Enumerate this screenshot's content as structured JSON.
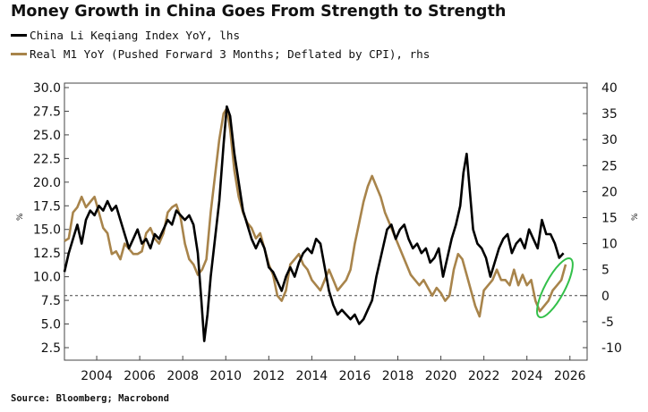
{
  "title": "Money Growth in China Goes From Strength to Strength",
  "legend": [
    {
      "label": "China Li Keqiang Index YoY, lhs",
      "color": "#000000"
    },
    {
      "label": "Real M1 YoY (Pushed Forward 3 Months; Deflated by CPI), rhs",
      "color": "#a8844b"
    }
  ],
  "source": "Source: Bloomberg; Macrobond",
  "chart_data": {
    "type": "line",
    "title": "Money Growth in China Goes From Strength to Strength",
    "left_axis": {
      "ylim": [
        2.5,
        30.0
      ],
      "ticks": [
        "2.5",
        "5.0",
        "7.5",
        "10.0",
        "12.5",
        "15.0",
        "17.5",
        "20.0",
        "22.5",
        "25.0",
        "27.5",
        "30.0"
      ],
      "unit": "%"
    },
    "right_axis": {
      "ylim": [
        -10,
        40
      ],
      "ticks": [
        "-10",
        "-5",
        "0",
        "5",
        "10",
        "15",
        "20",
        "25",
        "30",
        "35",
        "40"
      ],
      "unit": "%"
    },
    "x_axis": {
      "xlim": [
        2002.5,
        2026.8
      ],
      "ticks": [
        "2004",
        "2006",
        "2008",
        "2010",
        "2012",
        "2014",
        "2016",
        "2018",
        "2020",
        "2022",
        "2024",
        "2026"
      ]
    },
    "reference_line": {
      "axis": "right",
      "value": 0,
      "style": "dashed"
    },
    "annotation": {
      "shape": "ellipse",
      "color": "#33c04a",
      "center_x": 2025.3,
      "center_y_rhs": 1.5
    },
    "series": [
      {
        "name": "China Li Keqiang Index YoY, lhs",
        "axis": "left",
        "color": "#000000",
        "points": [
          [
            2002.5,
            10.5
          ],
          [
            2002.7,
            12.5
          ],
          [
            2002.9,
            14
          ],
          [
            2003.1,
            15.5
          ],
          [
            2003.3,
            13.5
          ],
          [
            2003.5,
            16
          ],
          [
            2003.7,
            17
          ],
          [
            2003.9,
            16.5
          ],
          [
            2004.1,
            17.5
          ],
          [
            2004.3,
            17
          ],
          [
            2004.5,
            18
          ],
          [
            2004.7,
            17
          ],
          [
            2004.9,
            17.5
          ],
          [
            2005.1,
            16
          ],
          [
            2005.3,
            14.5
          ],
          [
            2005.5,
            13
          ],
          [
            2005.7,
            14
          ],
          [
            2005.9,
            15
          ],
          [
            2006.1,
            13.5
          ],
          [
            2006.3,
            14
          ],
          [
            2006.5,
            13
          ],
          [
            2006.7,
            14.5
          ],
          [
            2006.9,
            14
          ],
          [
            2007.1,
            15
          ],
          [
            2007.3,
            16
          ],
          [
            2007.5,
            15.5
          ],
          [
            2007.7,
            17
          ],
          [
            2007.9,
            16.5
          ],
          [
            2008.1,
            16
          ],
          [
            2008.3,
            16.5
          ],
          [
            2008.5,
            15.5
          ],
          [
            2008.7,
            12.5
          ],
          [
            2008.85,
            8
          ],
          [
            2009.0,
            3.2
          ],
          [
            2009.15,
            6
          ],
          [
            2009.3,
            10
          ],
          [
            2009.5,
            14
          ],
          [
            2009.7,
            18
          ],
          [
            2009.9,
            24
          ],
          [
            2010.05,
            28
          ],
          [
            2010.2,
            27
          ],
          [
            2010.4,
            23
          ],
          [
            2010.6,
            20
          ],
          [
            2010.8,
            17
          ],
          [
            2011.0,
            15.5
          ],
          [
            2011.2,
            14
          ],
          [
            2011.4,
            13
          ],
          [
            2011.6,
            14
          ],
          [
            2011.8,
            13
          ],
          [
            2012.0,
            11
          ],
          [
            2012.2,
            10.5
          ],
          [
            2012.4,
            9.5
          ],
          [
            2012.6,
            8.5
          ],
          [
            2012.8,
            10
          ],
          [
            2013.0,
            11
          ],
          [
            2013.2,
            10
          ],
          [
            2013.4,
            11.5
          ],
          [
            2013.6,
            12.5
          ],
          [
            2013.8,
            13
          ],
          [
            2014.0,
            12.5
          ],
          [
            2014.2,
            14
          ],
          [
            2014.4,
            13.5
          ],
          [
            2014.6,
            11
          ],
          [
            2014.8,
            8.5
          ],
          [
            2015.0,
            7
          ],
          [
            2015.2,
            6
          ],
          [
            2015.4,
            6.5
          ],
          [
            2015.6,
            6
          ],
          [
            2015.8,
            5.5
          ],
          [
            2016.0,
            6
          ],
          [
            2016.2,
            5
          ],
          [
            2016.4,
            5.5
          ],
          [
            2016.6,
            6.5
          ],
          [
            2016.8,
            7.5
          ],
          [
            2017.0,
            10
          ],
          [
            2017.2,
            12
          ],
          [
            2017.5,
            15
          ],
          [
            2017.7,
            15.5
          ],
          [
            2017.9,
            14
          ],
          [
            2018.1,
            15
          ],
          [
            2018.3,
            15.5
          ],
          [
            2018.5,
            14
          ],
          [
            2018.7,
            13
          ],
          [
            2018.9,
            13.5
          ],
          [
            2019.1,
            12.5
          ],
          [
            2019.3,
            13
          ],
          [
            2019.5,
            11.5
          ],
          [
            2019.7,
            12
          ],
          [
            2019.9,
            13
          ],
          [
            2020.1,
            10
          ],
          [
            2020.3,
            12
          ],
          [
            2020.5,
            14
          ],
          [
            2020.7,
            15.5
          ],
          [
            2020.9,
            17.5
          ],
          [
            2021.05,
            21
          ],
          [
            2021.2,
            23
          ],
          [
            2021.35,
            19
          ],
          [
            2021.5,
            15
          ],
          [
            2021.7,
            13.5
          ],
          [
            2021.9,
            13
          ],
          [
            2022.1,
            12
          ],
          [
            2022.3,
            10
          ],
          [
            2022.5,
            11.5
          ],
          [
            2022.7,
            13
          ],
          [
            2022.9,
            14
          ],
          [
            2023.1,
            14.5
          ],
          [
            2023.3,
            12.5
          ],
          [
            2023.5,
            13.5
          ],
          [
            2023.7,
            14
          ],
          [
            2023.9,
            13
          ],
          [
            2024.1,
            15
          ],
          [
            2024.3,
            14
          ],
          [
            2024.5,
            13
          ],
          [
            2024.7,
            16
          ],
          [
            2024.9,
            14.5
          ],
          [
            2025.1,
            14.5
          ],
          [
            2025.3,
            13.5
          ],
          [
            2025.5,
            12
          ],
          [
            2025.7,
            12.5
          ]
        ]
      },
      {
        "name": "Real M1 YoY (Pushed Forward 3 Months; Deflated by CPI), rhs",
        "axis": "right",
        "color": "#a8844b",
        "points": [
          [
            2002.5,
            10.5
          ],
          [
            2002.7,
            11
          ],
          [
            2002.9,
            16
          ],
          [
            2003.1,
            17
          ],
          [
            2003.3,
            19
          ],
          [
            2003.5,
            17
          ],
          [
            2003.7,
            18
          ],
          [
            2003.9,
            19
          ],
          [
            2004.1,
            16
          ],
          [
            2004.3,
            13
          ],
          [
            2004.5,
            12
          ],
          [
            2004.7,
            8
          ],
          [
            2004.9,
            8.5
          ],
          [
            2005.1,
            7
          ],
          [
            2005.3,
            10
          ],
          [
            2005.5,
            9
          ],
          [
            2005.7,
            8
          ],
          [
            2005.9,
            8
          ],
          [
            2006.1,
            8.5
          ],
          [
            2006.3,
            12
          ],
          [
            2006.5,
            13
          ],
          [
            2006.7,
            11
          ],
          [
            2006.9,
            10
          ],
          [
            2007.1,
            12
          ],
          [
            2007.3,
            16
          ],
          [
            2007.5,
            17
          ],
          [
            2007.7,
            17.5
          ],
          [
            2007.9,
            15
          ],
          [
            2008.1,
            10
          ],
          [
            2008.3,
            7
          ],
          [
            2008.5,
            6
          ],
          [
            2008.7,
            4
          ],
          [
            2008.9,
            5
          ],
          [
            2009.1,
            7
          ],
          [
            2009.3,
            16
          ],
          [
            2009.5,
            23
          ],
          [
            2009.7,
            30
          ],
          [
            2009.9,
            35
          ],
          [
            2010.05,
            36
          ],
          [
            2010.2,
            32
          ],
          [
            2010.4,
            24
          ],
          [
            2010.6,
            19
          ],
          [
            2010.8,
            16
          ],
          [
            2011.0,
            14
          ],
          [
            2011.2,
            13
          ],
          [
            2011.4,
            11
          ],
          [
            2011.6,
            12
          ],
          [
            2011.8,
            9
          ],
          [
            2012.0,
            6
          ],
          [
            2012.2,
            4
          ],
          [
            2012.4,
            0
          ],
          [
            2012.6,
            -1
          ],
          [
            2012.8,
            1
          ],
          [
            2013.0,
            6
          ],
          [
            2013.2,
            7
          ],
          [
            2013.4,
            8
          ],
          [
            2013.6,
            6
          ],
          [
            2013.8,
            5
          ],
          [
            2014.0,
            3
          ],
          [
            2014.2,
            2
          ],
          [
            2014.4,
            1
          ],
          [
            2014.6,
            3
          ],
          [
            2014.8,
            5
          ],
          [
            2015.0,
            3
          ],
          [
            2015.2,
            1
          ],
          [
            2015.4,
            2
          ],
          [
            2015.6,
            3
          ],
          [
            2015.8,
            5
          ],
          [
            2016.0,
            10
          ],
          [
            2016.2,
            14
          ],
          [
            2016.4,
            18
          ],
          [
            2016.6,
            21
          ],
          [
            2016.8,
            23
          ],
          [
            2017.0,
            21
          ],
          [
            2017.2,
            19
          ],
          [
            2017.4,
            16
          ],
          [
            2017.6,
            14
          ],
          [
            2017.8,
            12
          ],
          [
            2018.0,
            10
          ],
          [
            2018.2,
            8
          ],
          [
            2018.4,
            6
          ],
          [
            2018.6,
            4
          ],
          [
            2018.8,
            3
          ],
          [
            2019.0,
            2
          ],
          [
            2019.2,
            3
          ],
          [
            2019.4,
            1.5
          ],
          [
            2019.6,
            0
          ],
          [
            2019.8,
            1.5
          ],
          [
            2020.0,
            0.5
          ],
          [
            2020.2,
            -1
          ],
          [
            2020.4,
            0
          ],
          [
            2020.6,
            5
          ],
          [
            2020.8,
            8
          ],
          [
            2021.0,
            7
          ],
          [
            2021.2,
            4
          ],
          [
            2021.4,
            1
          ],
          [
            2021.6,
            -2
          ],
          [
            2021.8,
            -4
          ],
          [
            2022.0,
            1
          ],
          [
            2022.2,
            2
          ],
          [
            2022.4,
            3
          ],
          [
            2022.6,
            5
          ],
          [
            2022.8,
            3
          ],
          [
            2023.0,
            3
          ],
          [
            2023.2,
            2
          ],
          [
            2023.4,
            5
          ],
          [
            2023.6,
            2
          ],
          [
            2023.8,
            4
          ],
          [
            2024.0,
            2
          ],
          [
            2024.2,
            3
          ],
          [
            2024.4,
            -1
          ],
          [
            2024.6,
            -3
          ],
          [
            2024.8,
            -2
          ],
          [
            2025.0,
            -1
          ],
          [
            2025.2,
            1
          ],
          [
            2025.4,
            2
          ],
          [
            2025.6,
            3
          ],
          [
            2025.8,
            6
          ]
        ]
      }
    ]
  }
}
